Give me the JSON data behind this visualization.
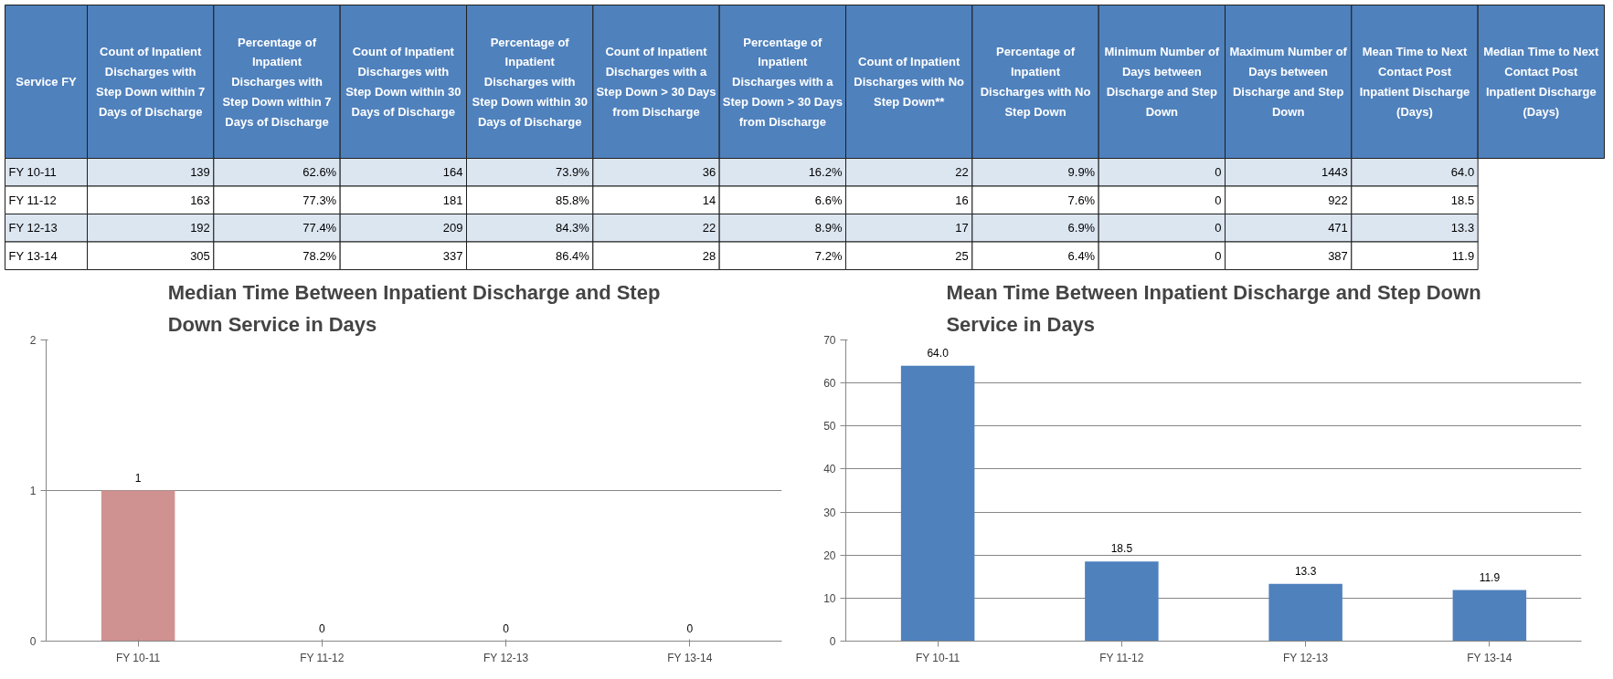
{
  "chart_data": [
    {
      "type": "other",
      "categories": [
        "Service FY",
        "Count of Inpatient Discharges with Step Down within 7 Days of Discharge",
        "Percentage of Inpatient Discharges with Step Down within 7 Days of Discharge",
        "Count of Inpatient Discharges with Step Down within 30 Days of Discharge",
        "Percentage of Inpatient Discharges with Step Down within 30 Days of Discharge",
        "Count of Inpatient Discharges with a Step Down > 30 Days from Discharge",
        "Percentage of Inpatient Discharges with a Step Down > 30 Days from Discharge",
        "Count of Inpatient Discharges with No Step Down**",
        "Percentage of Inpatient Discharges with No Step Down",
        "Minimum Number of Days between Discharge and Step Down",
        "Maximum Number of Days between Discharge and Step Down",
        "Mean Time to Next Contact Post Inpatient Discharge (Days)",
        "Median Time to Next Contact Post Inpatient Discharge (Days)"
      ],
      "cell_labels": [
        [
          "FY 10-11",
          "139",
          "62.6%",
          "164",
          "73.9%",
          "36",
          "16.2%",
          "22",
          "9.9%",
          "0",
          "1443",
          "64.0",
          null
        ],
        [
          "FY 11-12",
          "163",
          "77.3%",
          "181",
          "85.8%",
          "14",
          "6.6%",
          "16",
          "7.6%",
          "0",
          "922",
          "18.5",
          null
        ],
        [
          "FY 12-13",
          "192",
          "77.4%",
          "209",
          "84.3%",
          "22",
          "8.9%",
          "17",
          "6.9%",
          "0",
          "471",
          "13.3",
          null
        ],
        [
          "FY 13-14",
          "305",
          "78.2%",
          "337",
          "86.4%",
          "28",
          "7.2%",
          "25",
          "6.4%",
          "0",
          "387",
          "11.9",
          null
        ]
      ]
    },
    {
      "type": "bar",
      "title": "Median Time Between Inpatient Discharge and Step Down Service in Days",
      "categories": [
        "FY 10-11",
        "FY 11-12",
        "FY 12-13",
        "FY 13-14"
      ],
      "values": [
        1,
        0,
        0,
        0
      ],
      "color": "#d09290",
      "ylim": [
        0,
        2
      ],
      "yticks": [
        0,
        1,
        2
      ],
      "grid": "y",
      "data_labels": true
    },
    {
      "type": "bar",
      "title": "Mean Time Between Inpatient Discharge and Step Down Service in Days",
      "categories": [
        "FY 10-11",
        "FY 11-12",
        "FY 12-13",
        "FY 13-14"
      ],
      "values": [
        64.0,
        18.5,
        13.3,
        11.9
      ],
      "color": "#4f81bd",
      "value_labels": [
        "64.0",
        "18.5",
        "13.3",
        "11.9"
      ],
      "ylim": [
        0,
        70
      ],
      "yticks": [
        0,
        10,
        20,
        30,
        40,
        50,
        60,
        70
      ],
      "grid": "y"
    }
  ]
}
